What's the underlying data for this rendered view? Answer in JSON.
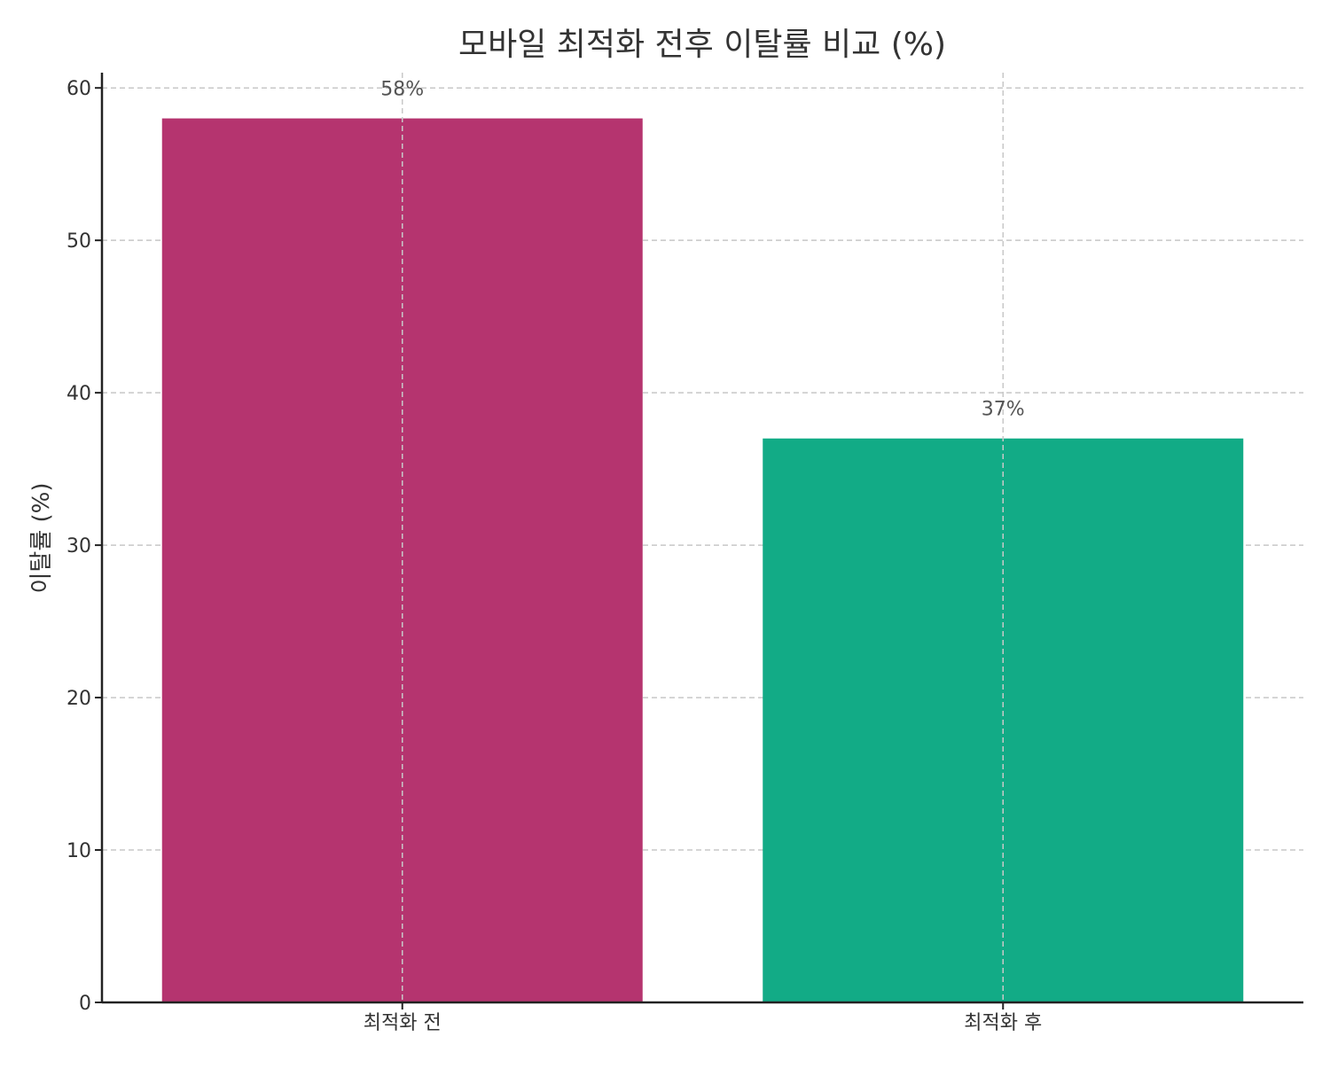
{
  "chart_data": {
    "type": "bar",
    "title": "모바일 최적화 전후 이탈률 비교 (%)",
    "xlabel": "",
    "ylabel": "이탈률 (%)",
    "categories": [
      "최적화 전",
      "최적화 후"
    ],
    "values": [
      58,
      37
    ],
    "data_labels": [
      "58%",
      "37%"
    ],
    "colors": [
      "#b5346f",
      "#12ab86"
    ],
    "ylim": [
      0,
      61
    ],
    "yticks": [
      0,
      10,
      20,
      30,
      40,
      50,
      60
    ],
    "ytick_labels": [
      "0",
      "10",
      "20",
      "30",
      "40",
      "50",
      "60"
    ],
    "grid": true
  }
}
